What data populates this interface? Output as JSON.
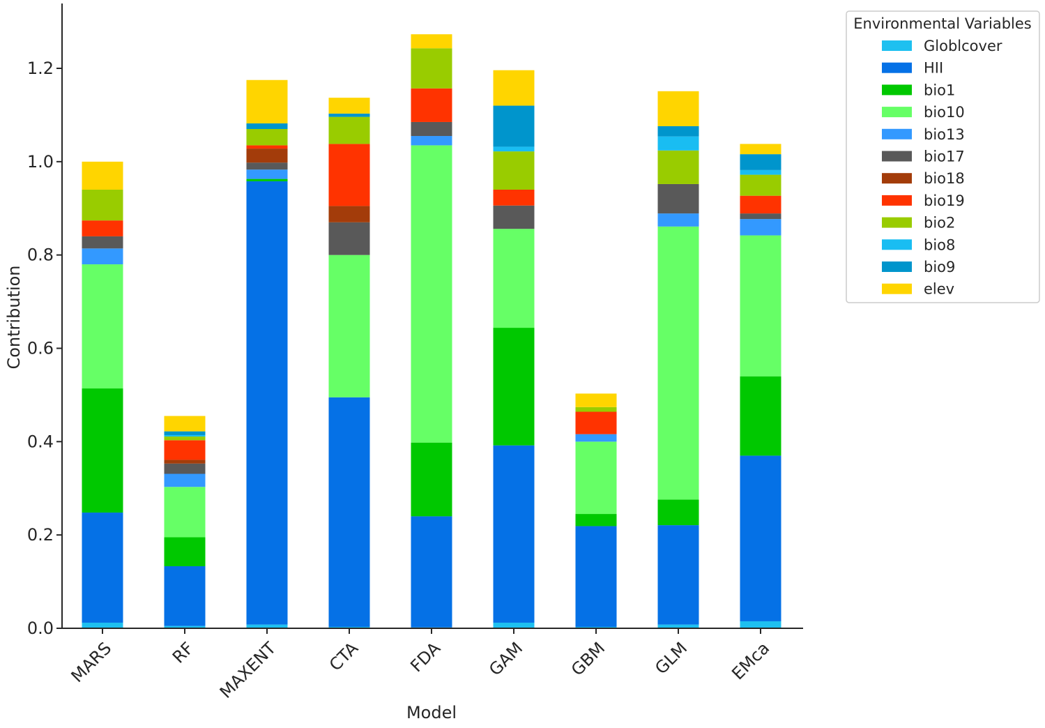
{
  "chart_data": {
    "type": "bar",
    "stacked": true,
    "xlabel": "Model",
    "ylabel": "Contribution",
    "ylim": [
      0,
      1.34
    ],
    "yticks": [
      0.0,
      0.2,
      0.4,
      0.6,
      0.8,
      1.0,
      1.2
    ],
    "ytick_labels": [
      "0.0",
      "0.2",
      "0.4",
      "0.6",
      "0.8",
      "1.0",
      "1.2"
    ],
    "categories": [
      "MARS",
      "RF",
      "MAXENT",
      "CTA",
      "FDA",
      "GAM",
      "GBM",
      "GLM",
      "EMca"
    ],
    "legend": {
      "title": "Environmental Variables",
      "placement": "outside-top-right"
    },
    "series": [
      {
        "name": "Globlcover",
        "color": "#1ec0f0",
        "values": [
          0.012,
          0.005,
          0.008,
          0.003,
          0.002,
          0.012,
          0.003,
          0.008,
          0.015
        ]
      },
      {
        "name": "HII",
        "color": "#0571e6",
        "values": [
          0.236,
          0.128,
          0.95,
          0.492,
          0.238,
          0.38,
          0.216,
          0.213,
          0.355
        ]
      },
      {
        "name": "bio1",
        "color": "#00c800",
        "values": [
          0.266,
          0.062,
          0.005,
          0.0,
          0.158,
          0.252,
          0.026,
          0.055,
          0.17
        ]
      },
      {
        "name": "bio10",
        "color": "#66ff66",
        "values": [
          0.266,
          0.108,
          0.0,
          0.305,
          0.637,
          0.212,
          0.155,
          0.585,
          0.302
        ]
      },
      {
        "name": "bio13",
        "color": "#3399ff",
        "values": [
          0.034,
          0.028,
          0.02,
          0.0,
          0.02,
          0.0,
          0.016,
          0.028,
          0.035
        ]
      },
      {
        "name": "bio17",
        "color": "#595959",
        "values": [
          0.026,
          0.022,
          0.015,
          0.07,
          0.03,
          0.05,
          0.0,
          0.063,
          0.012
        ]
      },
      {
        "name": "bio18",
        "color": "#a33c0a",
        "values": [
          0.0,
          0.008,
          0.03,
          0.035,
          0.0,
          0.0,
          0.0,
          0.0,
          0.0
        ]
      },
      {
        "name": "bio19",
        "color": "#ff3300",
        "values": [
          0.034,
          0.042,
          0.007,
          0.133,
          0.072,
          0.034,
          0.048,
          0.0,
          0.038
        ]
      },
      {
        "name": "bio2",
        "color": "#99cc00",
        "values": [
          0.066,
          0.008,
          0.035,
          0.058,
          0.086,
          0.082,
          0.01,
          0.072,
          0.045
        ]
      },
      {
        "name": "bio8",
        "color": "#19bdf2",
        "values": [
          0.0,
          0.003,
          0.0,
          0.0,
          0.0,
          0.01,
          0.0,
          0.03,
          0.01
        ]
      },
      {
        "name": "bio9",
        "color": "#0095cc",
        "values": [
          0.0,
          0.008,
          0.012,
          0.007,
          0.0,
          0.088,
          0.0,
          0.022,
          0.034
        ]
      },
      {
        "name": "elev",
        "color": "#ffd500",
        "values": [
          0.06,
          0.033,
          0.093,
          0.034,
          0.03,
          0.076,
          0.029,
          0.075,
          0.022
        ]
      }
    ]
  }
}
